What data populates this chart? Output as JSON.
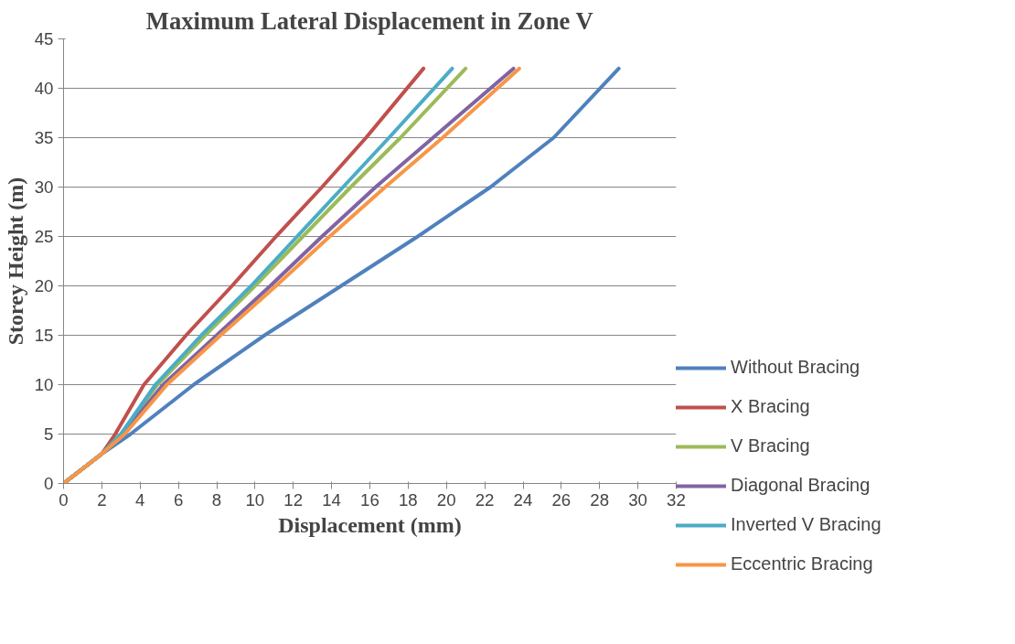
{
  "chart_data": {
    "type": "line",
    "title": "Maximum Lateral Displacement in Zone V",
    "xlabel": "Displacement (mm)",
    "ylabel": "Storey Height (m)",
    "xlim": [
      0,
      32
    ],
    "ylim": [
      0,
      45
    ],
    "xticks": [
      0,
      2,
      4,
      6,
      8,
      10,
      12,
      14,
      16,
      18,
      20,
      22,
      24,
      26,
      28,
      30,
      32
    ],
    "yticks": [
      0,
      5,
      10,
      15,
      20,
      25,
      30,
      35,
      40,
      45
    ],
    "grid": "y",
    "legend": "right",
    "marker": "none",
    "line_style": "solid",
    "series": [
      {
        "name": "Without Bracing",
        "color": "#4f81bd",
        "x": [
          0,
          2,
          3.5,
          6.8,
          10.5,
          14.5,
          18.5,
          22.3,
          25.6,
          29
        ],
        "values": [
          0,
          3,
          5,
          10,
          15,
          20,
          25,
          30,
          35,
          42
        ]
      },
      {
        "name": "X Bracing",
        "color": "#c0504d",
        "x": [
          0,
          2,
          2.7,
          4.2,
          6.4,
          8.8,
          11.1,
          13.5,
          15.8,
          18.8
        ],
        "values": [
          0,
          3,
          5,
          10,
          15,
          20,
          25,
          30,
          35,
          42
        ]
      },
      {
        "name": "V Bracing",
        "color": "#9bbb59",
        "x": [
          0,
          2,
          3,
          4.9,
          7.4,
          10,
          12.5,
          15,
          17.6,
          21
        ],
        "values": [
          0,
          3,
          5,
          10,
          15,
          20,
          25,
          30,
          35,
          42
        ]
      },
      {
        "name": "Diagonal Bracing",
        "color": "#8064a2",
        "x": [
          0,
          2,
          3.1,
          5.2,
          8,
          10.8,
          13.5,
          16.3,
          19.3,
          23.5
        ],
        "values": [
          0,
          3,
          5,
          10,
          15,
          20,
          25,
          30,
          35,
          42
        ]
      },
      {
        "name": "Inverted V Bracing",
        "color": "#4bacc6",
        "x": [
          0,
          2,
          3,
          4.8,
          7.2,
          9.8,
          12.2,
          14.6,
          17,
          20.3
        ],
        "values": [
          0,
          3,
          5,
          10,
          15,
          20,
          25,
          30,
          35,
          42
        ]
      },
      {
        "name": "Eccentric Bracing",
        "color": "#f79646",
        "x": [
          0,
          2,
          3.2,
          5.4,
          8.2,
          11.1,
          13.9,
          16.8,
          19.8,
          23.8
        ],
        "values": [
          0,
          3,
          5,
          10,
          15,
          20,
          25,
          30,
          35,
          42
        ]
      }
    ]
  }
}
